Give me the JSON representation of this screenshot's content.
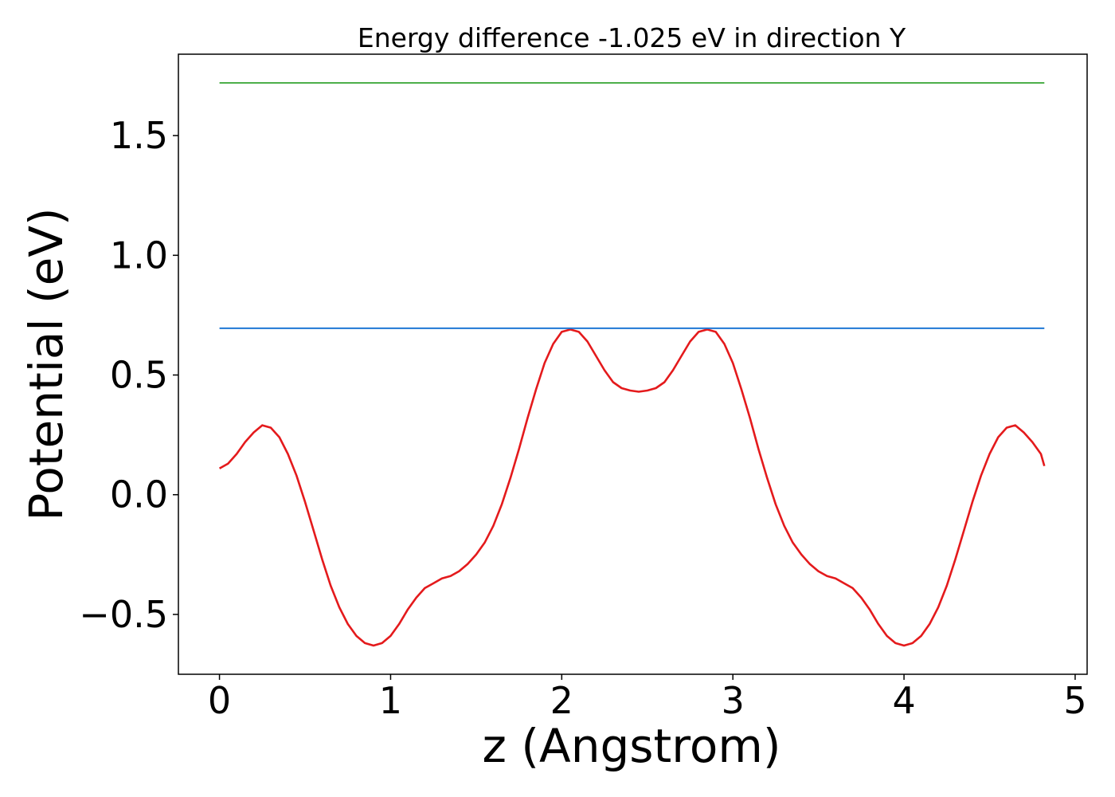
{
  "chart_data": {
    "type": "line",
    "title": "Energy difference -1.025 eV in direction Y",
    "xlabel": "z (Angstrom)",
    "ylabel": "Potential (eV)",
    "xlim": [
      -0.24,
      5.07
    ],
    "ylim": [
      -0.75,
      1.84
    ],
    "xticks": [
      0,
      1,
      2,
      3,
      4,
      5
    ],
    "xtick_labels": [
      "0",
      "1",
      "2",
      "3",
      "4",
      "5"
    ],
    "yticks": [
      -0.5,
      0.0,
      0.5,
      1.0,
      1.5
    ],
    "ytick_labels": [
      "−0.5",
      "0.0",
      "0.5",
      "1.0",
      "1.5"
    ],
    "grid": false,
    "series": [
      {
        "color": "#e41a1c",
        "x": [
          0.0,
          0.05,
          0.1,
          0.15,
          0.2,
          0.25,
          0.3,
          0.35,
          0.4,
          0.45,
          0.5,
          0.55,
          0.6,
          0.65,
          0.7,
          0.75,
          0.8,
          0.85,
          0.9,
          0.95,
          1.0,
          1.05,
          1.1,
          1.15,
          1.2,
          1.25,
          1.3,
          1.35,
          1.4,
          1.45,
          1.5,
          1.55,
          1.6,
          1.65,
          1.7,
          1.75,
          1.8,
          1.85,
          1.9,
          1.95,
          2.0,
          2.05,
          2.1,
          2.15,
          2.2,
          2.25,
          2.3,
          2.35,
          2.4,
          2.45,
          2.5,
          2.55,
          2.6,
          2.65,
          2.7,
          2.75,
          2.8,
          2.85,
          2.9,
          2.95,
          3.0,
          3.05,
          3.1,
          3.15,
          3.2,
          3.25,
          3.3,
          3.35,
          3.4,
          3.45,
          3.5,
          3.55,
          3.6,
          3.65,
          3.7,
          3.75,
          3.8,
          3.85,
          3.9,
          3.95,
          4.0,
          4.05,
          4.1,
          4.15,
          4.2,
          4.25,
          4.3,
          4.35,
          4.4,
          4.45,
          4.5,
          4.55,
          4.6,
          4.65,
          4.7,
          4.75,
          4.8,
          4.82
        ],
        "y": [
          0.11,
          0.13,
          0.17,
          0.22,
          0.26,
          0.29,
          0.28,
          0.24,
          0.17,
          0.08,
          -0.03,
          -0.15,
          -0.27,
          -0.38,
          -0.47,
          -0.54,
          -0.59,
          -0.62,
          -0.63,
          -0.62,
          -0.59,
          -0.54,
          -0.48,
          -0.43,
          -0.39,
          -0.37,
          -0.35,
          -0.34,
          -0.32,
          -0.29,
          -0.25,
          -0.2,
          -0.13,
          -0.04,
          0.07,
          0.19,
          0.32,
          0.44,
          0.55,
          0.63,
          0.68,
          0.69,
          0.68,
          0.64,
          0.58,
          0.52,
          0.47,
          0.445,
          0.435,
          0.43,
          0.435,
          0.445,
          0.47,
          0.52,
          0.58,
          0.64,
          0.68,
          0.69,
          0.68,
          0.63,
          0.55,
          0.44,
          0.32,
          0.19,
          0.07,
          -0.04,
          -0.13,
          -0.2,
          -0.25,
          -0.29,
          -0.32,
          -0.34,
          -0.35,
          -0.37,
          -0.39,
          -0.43,
          -0.48,
          -0.54,
          -0.59,
          -0.62,
          -0.63,
          -0.62,
          -0.59,
          -0.54,
          -0.47,
          -0.38,
          -0.27,
          -0.15,
          -0.03,
          0.08,
          0.17,
          0.24,
          0.28,
          0.29,
          0.26,
          0.22,
          0.17,
          0.12
        ]
      },
      {
        "color": "#1f77d4",
        "x": [
          0.0,
          4.82
        ],
        "y": [
          0.695,
          0.695
        ]
      },
      {
        "color": "#4daf4a",
        "x": [
          0.0,
          4.82
        ],
        "y": [
          1.72,
          1.72
        ]
      }
    ]
  }
}
